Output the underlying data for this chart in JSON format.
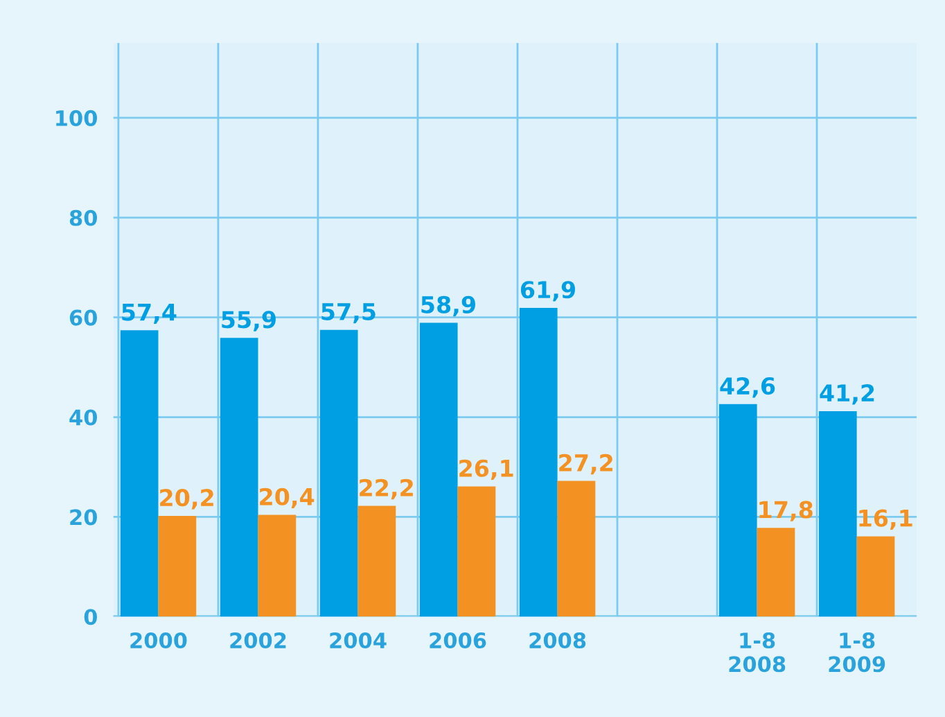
{
  "chart_data": {
    "type": "bar",
    "categories": [
      "2000",
      "2002",
      "2004",
      "2006",
      "2008",
      null,
      "1-8\n2008",
      "1-8\n2009"
    ],
    "series": [
      {
        "color": "#009fe3",
        "values": [
          57.4,
          55.9,
          57.5,
          58.9,
          61.9,
          null,
          42.6,
          41.2
        ],
        "value_labels": [
          "57,4",
          "55,9",
          "57,5",
          "58,9",
          "61,9",
          null,
          "42,6",
          "41,2"
        ]
      },
      {
        "color": "#f39222",
        "values": [
          20.2,
          20.4,
          22.2,
          26.1,
          27.2,
          null,
          17.8,
          16.1
        ],
        "value_labels": [
          "20,2",
          "20,4",
          "22,2",
          "26,1",
          "27,2",
          null,
          "17,8",
          "16,1"
        ]
      }
    ],
    "ylim": [
      0,
      115
    ],
    "yticks": [
      0,
      20,
      40,
      60,
      80,
      100
    ],
    "grid": true,
    "legend": false
  }
}
